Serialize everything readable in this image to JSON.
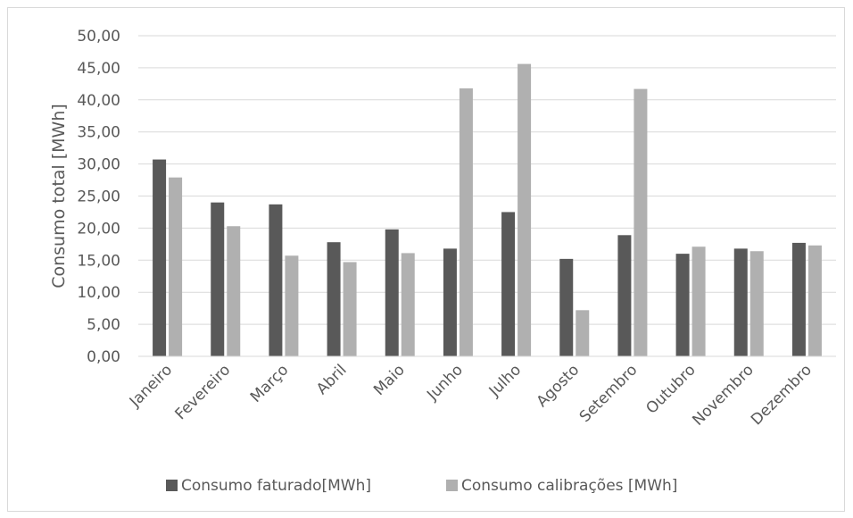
{
  "chart_data": {
    "type": "bar",
    "title": "",
    "xlabel": "",
    "ylabel": "Consumo total [MWh]",
    "ylim": [
      0,
      50
    ],
    "yticks": [
      "0,00",
      "5,00",
      "10,00",
      "15,00",
      "20,00",
      "25,00",
      "30,00",
      "35,00",
      "40,00",
      "45,00",
      "50,00"
    ],
    "grid": true,
    "legend_position": "bottom",
    "categories": [
      "Janeiro",
      "Fevereiro",
      "Março",
      "Abril",
      "Maio",
      "Junho",
      "Julho",
      "Agosto",
      "Setembro",
      "Outubro",
      "Novembro",
      "Dezembro"
    ],
    "series": [
      {
        "name": "Consumo faturado[MWh]",
        "color": "#595959",
        "values": [
          30.7,
          24.0,
          23.7,
          17.8,
          19.8,
          16.8,
          22.5,
          15.2,
          18.9,
          16.0,
          16.8,
          17.7
        ]
      },
      {
        "name": "Consumo calibrações [MWh]",
        "color": "#b0b0b0",
        "values": [
          27.9,
          20.3,
          15.7,
          14.7,
          16.1,
          41.8,
          45.6,
          7.2,
          41.7,
          17.1,
          16.4,
          17.3
        ]
      }
    ]
  }
}
